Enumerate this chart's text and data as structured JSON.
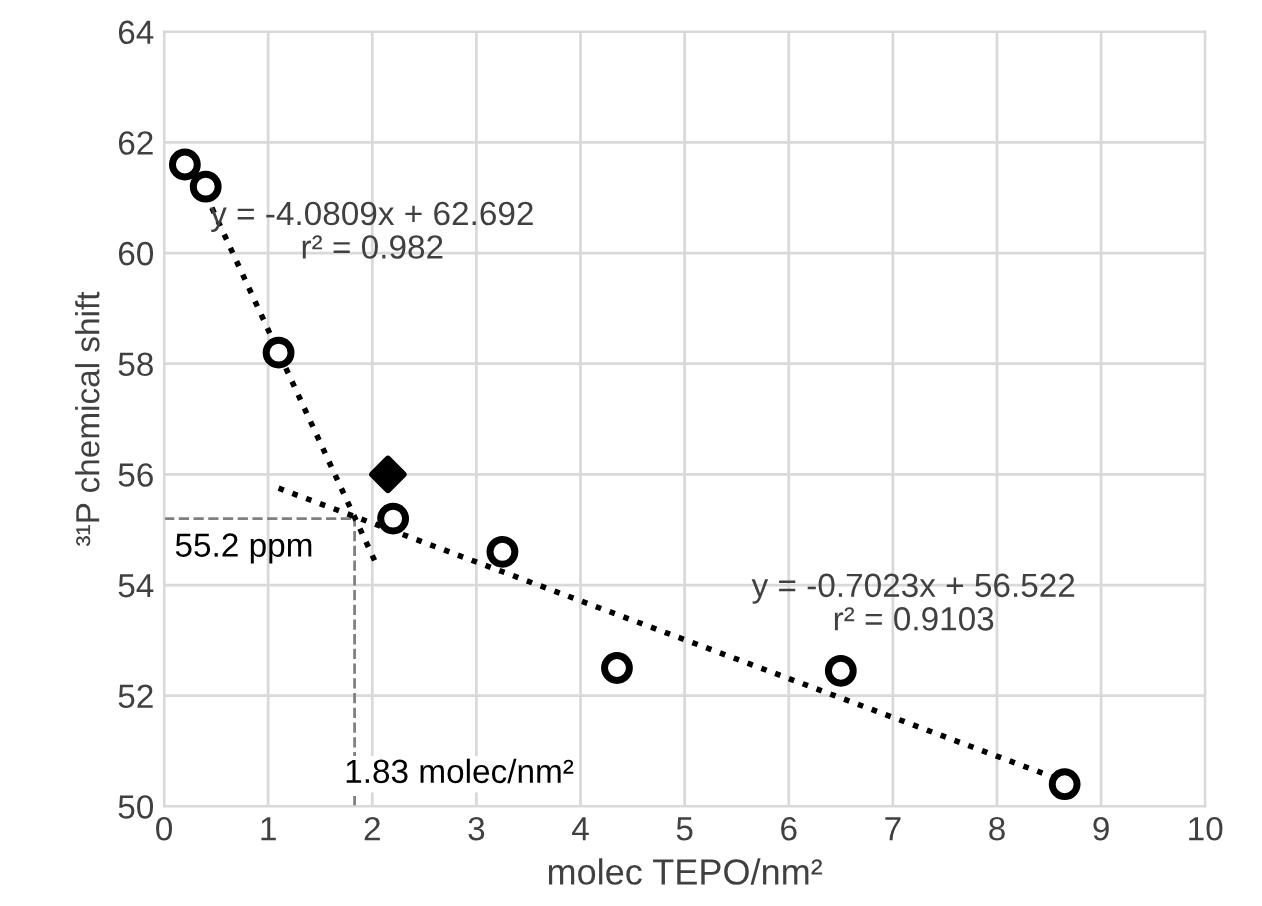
{
  "chart_data": {
    "type": "scatter",
    "xlabel": "molec TEPO/nm²",
    "ylabel": "³¹P chemical shift",
    "xlim": [
      0,
      10
    ],
    "ylim": [
      50,
      64
    ],
    "xticks": [
      0,
      1,
      2,
      3,
      4,
      5,
      6,
      7,
      8,
      9,
      10
    ],
    "yticks": [
      50,
      52,
      54,
      56,
      58,
      60,
      62,
      64
    ],
    "grid": true,
    "series": [
      {
        "marker": "circle",
        "color": "#000000",
        "x": [
          0.2,
          0.4,
          1.1,
          2.2,
          3.25,
          4.35,
          6.5,
          8.65
        ],
        "values": [
          61.6,
          61.2,
          58.2,
          55.2,
          54.6,
          52.5,
          52.45,
          50.4
        ]
      },
      {
        "marker": "diamond",
        "color": "#000000",
        "x": [
          2.15
        ],
        "values": [
          56.0
        ]
      },
      {
        "type": "line",
        "line_style": "dotted",
        "color": "#000000",
        "x": [
          0.4,
          2.05
        ],
        "values": [
          61.06,
          54.33
        ]
      },
      {
        "type": "line",
        "line_style": "dotted",
        "color": "#000000",
        "x": [
          1.1,
          8.65
        ],
        "values": [
          55.75,
          50.45
        ]
      }
    ],
    "ref_lines": [
      {
        "axis": "y",
        "value": 55.2,
        "label": "55.2 ppm",
        "color": "#808080",
        "line_style": "dashed"
      },
      {
        "axis": "x",
        "value": 1.83,
        "label": "1.83 molec/nm²",
        "color": "#808080",
        "line_style": "dashed"
      }
    ],
    "annotations": [
      "y = -4.0809x + 62.692\nr² = 0.982",
      "y = -0.7023x + 56.522\nr² = 0.9103"
    ]
  }
}
